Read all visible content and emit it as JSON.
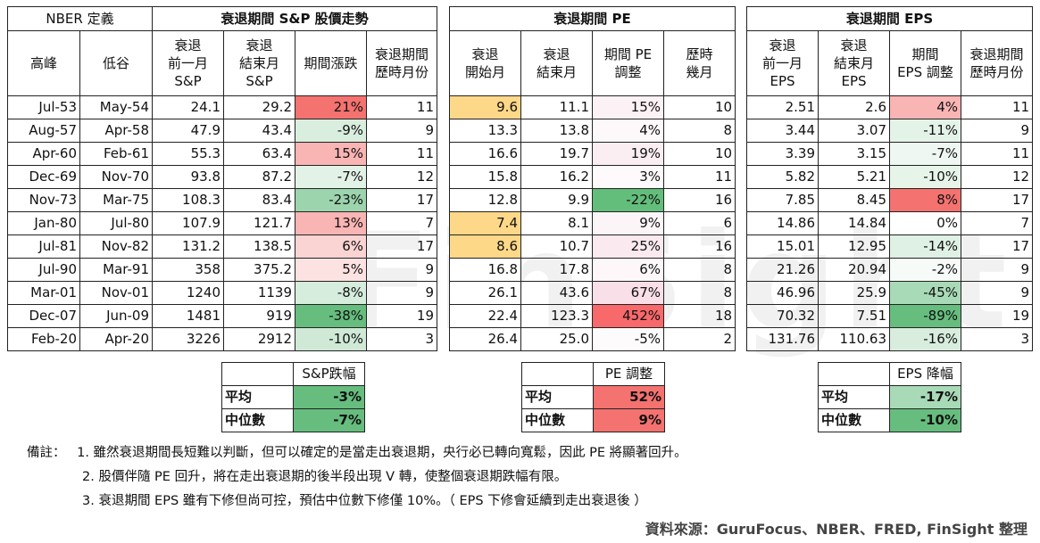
{
  "watermark": "FinSight",
  "sp": {
    "title": "衰退期間 S&P 股價走勢",
    "nber": "NBER 定義",
    "headers": [
      "高峰",
      "低谷",
      "衰退\n前一月\nS&P",
      "衰退\n結束月\nS&P",
      "期間漲跌",
      "衰退期間\n歷時月份"
    ],
    "rows": [
      [
        "Jul-53",
        "May-54",
        "24.1",
        "29.2",
        "21%",
        "11"
      ],
      [
        "Aug-57",
        "Apr-58",
        "47.9",
        "43.4",
        "-9%",
        "9"
      ],
      [
        "Apr-60",
        "Feb-61",
        "55.3",
        "63.4",
        "15%",
        "11"
      ],
      [
        "Dec-69",
        "Nov-70",
        "93.8",
        "87.2",
        "-7%",
        "12"
      ],
      [
        "Nov-73",
        "Mar-75",
        "108.3",
        "83.4",
        "-23%",
        "17"
      ],
      [
        "Jan-80",
        "Jul-80",
        "107.9",
        "121.7",
        "13%",
        "7"
      ],
      [
        "Jul-81",
        "Nov-82",
        "131.2",
        "138.5",
        "6%",
        "17"
      ],
      [
        "Jul-90",
        "Mar-91",
        "358",
        "375.2",
        "5%",
        "9"
      ],
      [
        "Mar-01",
        "Nov-01",
        "1240",
        "1139",
        "-8%",
        "9"
      ],
      [
        "Dec-07",
        "Jun-09",
        "1481",
        "919",
        "-38%",
        "19"
      ],
      [
        "Feb-20",
        "Apr-20",
        "3226",
        "2912",
        "-10%",
        "3"
      ]
    ],
    "colors": [
      "#f4726f",
      "#d9eedf",
      "#f9b4b4",
      "#e3f2e7",
      "#9cd4ad",
      "#f9b4b4",
      "#fad3d3",
      "#fde2e2",
      "#d6ecdc",
      "#66bd7e",
      "#cfe9d6"
    ]
  },
  "pe": {
    "title": "衰退期間 PE",
    "headers": [
      "衰退\n開始月",
      "衰退\n結束月",
      "期間 PE\n調整",
      "歷時\n幾月"
    ],
    "rows": [
      [
        "9.6",
        "11.1",
        "15%",
        "10"
      ],
      [
        "13.3",
        "13.8",
        "4%",
        "8"
      ],
      [
        "16.6",
        "19.7",
        "19%",
        "10"
      ],
      [
        "15.8",
        "16.2",
        "3%",
        "11"
      ],
      [
        "12.8",
        "9.9",
        "-22%",
        "16"
      ],
      [
        "7.4",
        "8.1",
        "9%",
        "6"
      ],
      [
        "8.6",
        "10.7",
        "25%",
        "16"
      ],
      [
        "16.8",
        "17.8",
        "6%",
        "8"
      ],
      [
        "26.1",
        "43.6",
        "67%",
        "8"
      ],
      [
        "22.4",
        "123.3",
        "452%",
        "18"
      ],
      [
        "26.4",
        "25.0",
        "-5%",
        "2"
      ]
    ],
    "start_colors": [
      "#fdd888",
      "#ffffff",
      "#ffffff",
      "#ffffff",
      "#ffffff",
      "#fdd888",
      "#fdd888",
      "#ffffff",
      "#ffffff",
      "#ffffff",
      "#ffffff"
    ],
    "colors": [
      "#fcf1f5",
      "#fdf8fa",
      "#fbeef3",
      "#fef9fb",
      "#63be7b",
      "#fcf5f8",
      "#fae9ef",
      "#fdf7fa",
      "#f9dfe7",
      "#f8696b",
      "#fdfbfc"
    ]
  },
  "eps": {
    "title": "衰退期間 EPS",
    "headers": [
      "衰退\n前一月\nEPS",
      "衰退\n結束月\nEPS",
      "期間\nEPS 調整",
      "衰退期間\n歷時月份"
    ],
    "rows": [
      [
        "2.51",
        "2.6",
        "4%",
        "11"
      ],
      [
        "3.44",
        "3.07",
        "-11%",
        "9"
      ],
      [
        "3.39",
        "3.15",
        "-7%",
        "11"
      ],
      [
        "5.82",
        "5.21",
        "-10%",
        "12"
      ],
      [
        "7.85",
        "8.45",
        "8%",
        "17"
      ],
      [
        "14.86",
        "14.84",
        "0%",
        "7"
      ],
      [
        "15.01",
        "12.95",
        "-14%",
        "17"
      ],
      [
        "21.26",
        "20.94",
        "-2%",
        "9"
      ],
      [
        "46.96",
        "25.9",
        "-45%",
        "9"
      ],
      [
        "70.32",
        "7.51",
        "-89%",
        "19"
      ],
      [
        "131.76",
        "110.63",
        "-16%",
        "3"
      ]
    ],
    "colors": [
      "#f9b4b4",
      "#e4f3e8",
      "#eef7f1",
      "#e7f4ea",
      "#f4726f",
      "#ffffff",
      "#dff0e4",
      "#f7fbf8",
      "#a9dab7",
      "#66bd7e",
      "#d8eddd"
    ]
  },
  "summary": {
    "sp": {
      "header": "S&P跌幅",
      "avg_label": "平均",
      "avg": "-3%",
      "med_label": "中位數",
      "med": "-7%",
      "avg_color": "#66bd7e",
      "med_color": "#66bd7e"
    },
    "pe": {
      "header": "PE 調整",
      "avg_label": "平均",
      "avg": "52%",
      "med_label": "中位數",
      "med": "9%",
      "avg_color": "#f4726f",
      "med_color": "#f4726f"
    },
    "eps": {
      "header": "EPS 降幅",
      "avg_label": "平均",
      "avg": "-17%",
      "med_label": "中位數",
      "med": "-10%",
      "avg_color": "#a9dab7",
      "med_color": "#66bd7e"
    }
  },
  "notes": {
    "label": "備註：",
    "lines": [
      "1. 雖然衰退期間長短難以判斷，但可以確定的是當走出衰退期，央行必已轉向寬鬆，因此 PE 將顯著回升。",
      "2. 股價伴隨 PE 回升，將在走出衰退期的後半段出現 V 轉，使整個衰退期跌幅有限。",
      "3. 衰退期間 EPS 雖有下修但尚可控，預估中位數下修僅 10%。（ EPS 下修會延續到走出衰退後 ）"
    ]
  },
  "source": "資料來源：GuruFocus、NBER、FRED, FinSight 整理"
}
